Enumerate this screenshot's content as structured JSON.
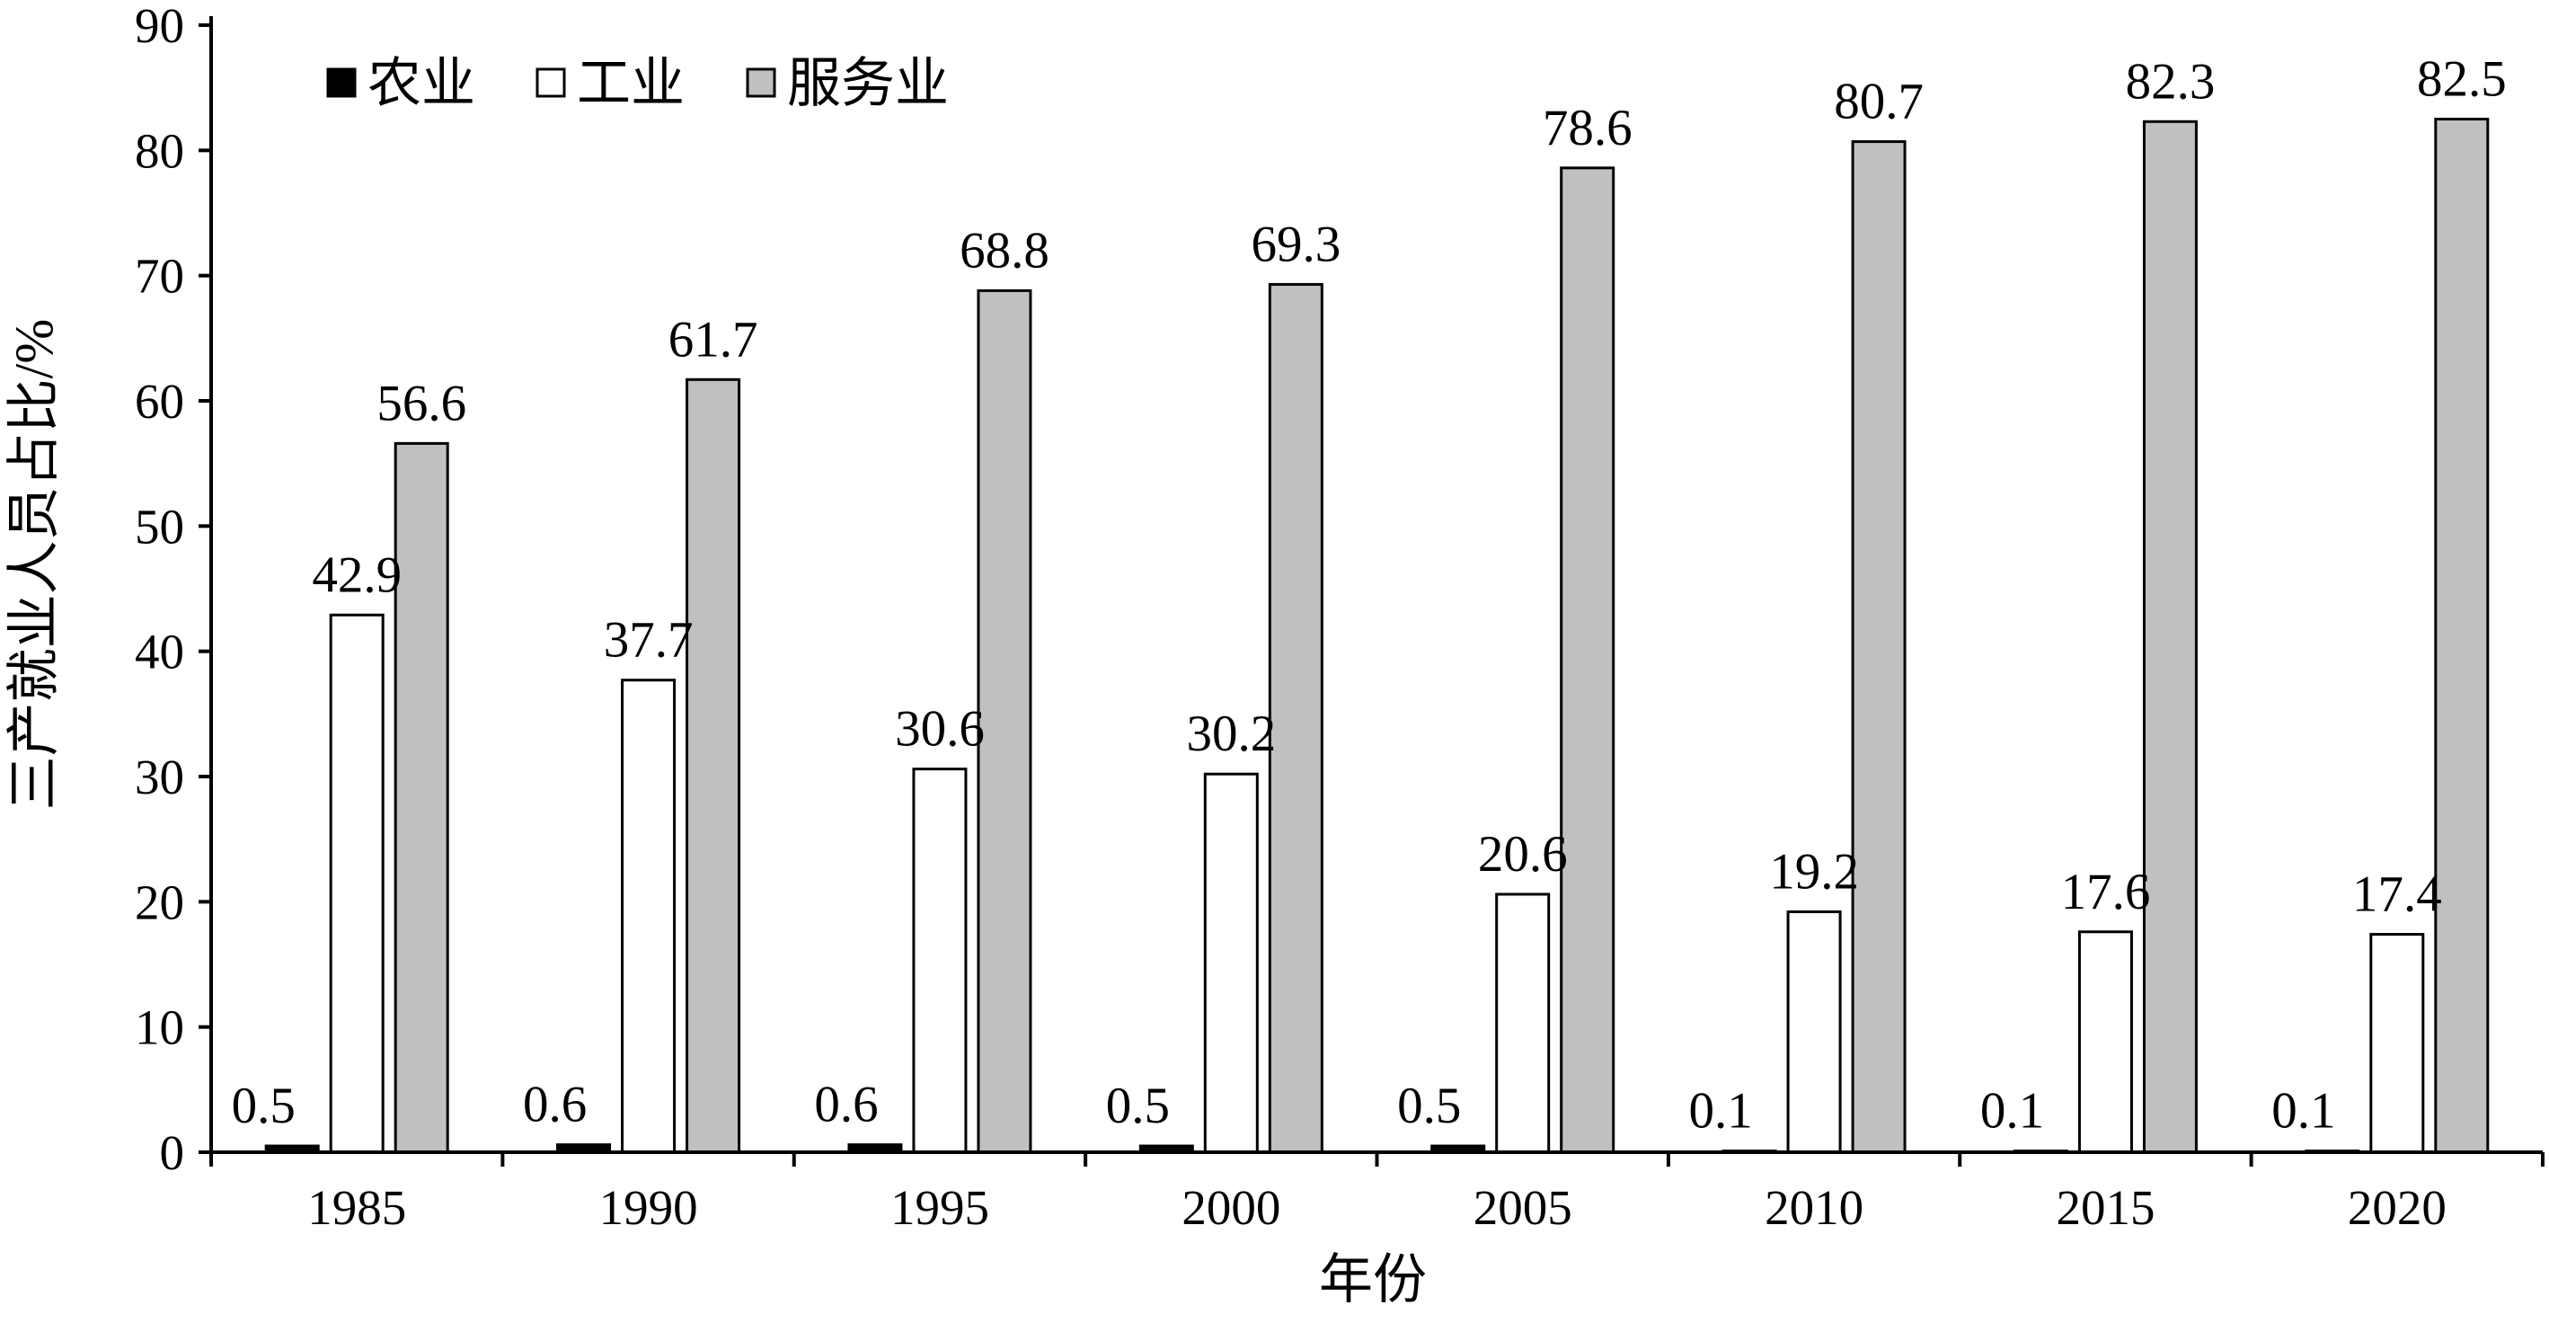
{
  "chart_data": {
    "type": "bar",
    "categories": [
      "1985",
      "1990",
      "1995",
      "2000",
      "2005",
      "2010",
      "2015",
      "2020"
    ],
    "series": [
      {
        "name": "农业",
        "color": "#000000",
        "values": [
          0.5,
          0.6,
          0.6,
          0.5,
          0.5,
          0.1,
          0.1,
          0.1
        ]
      },
      {
        "name": "工业",
        "color": "#ffffff",
        "values": [
          42.9,
          37.7,
          30.6,
          30.2,
          20.6,
          19.2,
          17.6,
          17.4
        ]
      },
      {
        "name": "服务业",
        "color": "#c0c0c0",
        "values": [
          56.6,
          61.7,
          68.8,
          69.3,
          78.6,
          80.7,
          82.3,
          82.5
        ]
      }
    ],
    "data_labels": [
      [
        "0.5",
        "0.6",
        "0.6",
        "0.5",
        "0.5",
        "0.1",
        "0.1",
        "0.1"
      ],
      [
        "42.9",
        "37.7",
        "30.6",
        "30.2",
        "20.6",
        "19.2",
        "17.6",
        "17.4"
      ],
      [
        "56.6",
        "61.7",
        "68.8",
        "69.3",
        "78.6",
        "80.7",
        "82.3",
        "82.5"
      ]
    ],
    "yticks": [
      "0",
      "10",
      "20",
      "30",
      "40",
      "50",
      "60",
      "70",
      "80",
      "90"
    ],
    "xlabel": "年份",
    "ylabel": "三产就业人员占比/%",
    "ylim": [
      0,
      90
    ],
    "legend_position": "top-left",
    "grid": false
  }
}
